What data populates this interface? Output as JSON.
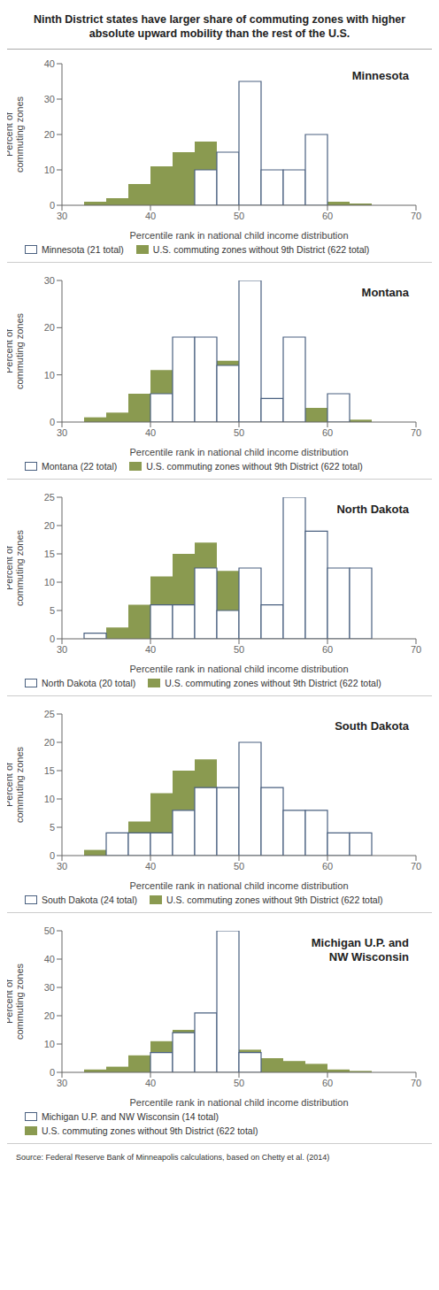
{
  "title": "Ninth District states have larger share of commuting zones with higher\nabsolute upward mobility than the rest of the U.S.",
  "annotations": [
    "Source: Federal Reserve Bank of Minneapolis calculations, based on Chetty et al. (2014)"
  ],
  "chart_data": [
    {
      "type": "histogram",
      "title": "Minnesota",
      "x_label": "Percentile rank in national child income distribution",
      "y_label": "Percent of\ncommuting zones",
      "bins": [
        30,
        32.5,
        35,
        37.5,
        40,
        42.5,
        45,
        47.5,
        50,
        52.5,
        55,
        57.5,
        60,
        62.5,
        65,
        67.5,
        70
      ],
      "series": [
        {
          "name": "Minnesota (21 total)",
          "color": "#4a6080",
          "values": [
            0,
            0,
            0,
            0,
            0,
            0,
            10,
            15,
            35,
            10,
            10,
            20,
            0,
            0,
            0,
            0
          ]
        },
        {
          "name": "U.S. commuting zones without 9th District (622 total)",
          "color": "#8a9a50",
          "values": [
            0,
            1,
            2,
            6,
            11,
            15,
            18,
            13,
            8,
            5,
            4,
            3,
            1,
            0.5,
            0,
            0
          ]
        }
      ],
      "xlim": [
        30,
        70
      ],
      "xticks": [
        30,
        40,
        50,
        60,
        70
      ],
      "ylim": [
        0,
        40
      ],
      "yticks": [
        0,
        10,
        20,
        30,
        40
      ],
      "legend": "bottom"
    },
    {
      "type": "histogram",
      "title": "Montana",
      "x_label": "Percentile rank in national child income distribution",
      "y_label": "Percent of\ncommuting zones",
      "bins": [
        30,
        32.5,
        35,
        37.5,
        40,
        42.5,
        45,
        47.5,
        50,
        52.5,
        55,
        57.5,
        60,
        62.5,
        65,
        67.5,
        70
      ],
      "series": [
        {
          "name": "Montana (22 total)",
          "color": "#4a6080",
          "values": [
            0,
            0,
            0,
            0,
            6,
            18,
            18,
            12,
            30,
            5,
            18,
            0,
            6,
            0,
            0,
            0
          ]
        },
        {
          "name": "U.S. commuting zones without 9th District (622 total)",
          "color": "#8a9a50",
          "values": [
            0,
            1,
            2,
            6,
            11,
            15,
            18,
            13,
            8,
            5,
            4,
            3,
            1,
            0.5,
            0,
            0
          ]
        }
      ],
      "xlim": [
        30,
        70
      ],
      "xticks": [
        30,
        40,
        50,
        60,
        70
      ],
      "ylim": [
        0,
        30
      ],
      "yticks": [
        0,
        10,
        20,
        30
      ],
      "legend": "bottom"
    },
    {
      "type": "histogram",
      "title": "North Dakota",
      "x_label": "Percentile rank in national child income distribution",
      "y_label": "Percent of\ncommuting zones",
      "bins": [
        30,
        32.5,
        35,
        37.5,
        40,
        42.5,
        45,
        47.5,
        50,
        52.5,
        55,
        57.5,
        60,
        62.5,
        65,
        67.5,
        70
      ],
      "series": [
        {
          "name": "North Dakota (20 total)",
          "color": "#4a6080",
          "values": [
            0,
            1,
            0,
            0,
            6,
            6,
            12.5,
            5,
            12.5,
            6,
            25,
            19,
            12.5,
            12.5,
            0,
            0
          ]
        },
        {
          "name": "U.S. commuting zones without 9th District (622 total)",
          "color": "#8a9a50",
          "values": [
            0,
            1,
            2,
            6,
            11,
            15,
            17,
            12,
            8,
            5,
            4,
            3,
            1,
            0.5,
            0,
            0
          ]
        }
      ],
      "xlim": [
        30,
        70
      ],
      "xticks": [
        30,
        40,
        50,
        60,
        70
      ],
      "ylim": [
        0,
        25
      ],
      "yticks": [
        0,
        5,
        10,
        15,
        20,
        25
      ],
      "legend": "bottom"
    },
    {
      "type": "histogram",
      "title": "South Dakota",
      "x_label": "Percentile rank in national child income distribution",
      "y_label": "Percent of\ncommuting zones",
      "bins": [
        30,
        32.5,
        35,
        37.5,
        40,
        42.5,
        45,
        47.5,
        50,
        52.5,
        55,
        57.5,
        60,
        62.5,
        65,
        67.5,
        70
      ],
      "series": [
        {
          "name": "South Dakota (24 total)",
          "color": "#4a6080",
          "values": [
            0,
            0,
            4,
            4,
            4,
            8,
            12,
            12,
            20,
            12,
            8,
            8,
            4,
            4,
            0,
            0
          ]
        },
        {
          "name": "U.S. commuting zones without 9th District (622 total)",
          "color": "#8a9a50",
          "values": [
            0,
            1,
            2,
            6,
            11,
            15,
            17,
            12,
            8,
            5,
            4,
            3,
            1,
            0.5,
            0,
            0
          ]
        }
      ],
      "xlim": [
        30,
        70
      ],
      "xticks": [
        30,
        40,
        50,
        60,
        70
      ],
      "ylim": [
        0,
        25
      ],
      "yticks": [
        0,
        5,
        10,
        15,
        20,
        25
      ],
      "legend": "bottom"
    },
    {
      "type": "histogram",
      "title": "Michigan U.P. and\nNW Wisconsin",
      "x_label": "Percentile rank in national child income distribution",
      "y_label": "Percent of\ncommuting zones",
      "bins": [
        30,
        32.5,
        35,
        37.5,
        40,
        42.5,
        45,
        47.5,
        50,
        52.5,
        55,
        57.5,
        60,
        62.5,
        65,
        67.5,
        70
      ],
      "series": [
        {
          "name": "Michigan U.P. and NW Wisconsin (14 total)",
          "color": "#4a6080",
          "values": [
            0,
            0,
            0,
            0,
            7,
            14,
            21,
            50,
            7,
            0,
            0,
            0,
            0,
            0,
            0,
            0
          ]
        },
        {
          "name": "U.S. commuting zones without 9th District (622 total)",
          "color": "#8a9a50",
          "values": [
            0,
            1,
            2,
            6,
            11,
            15,
            17,
            12,
            8,
            5,
            4,
            3,
            1,
            0.5,
            0,
            0
          ]
        }
      ],
      "xlim": [
        30,
        70
      ],
      "xticks": [
        30,
        40,
        50,
        60,
        70
      ],
      "ylim": [
        0,
        50
      ],
      "yticks": [
        0,
        10,
        20,
        30,
        40,
        50
      ],
      "legend": "bottom"
    }
  ]
}
